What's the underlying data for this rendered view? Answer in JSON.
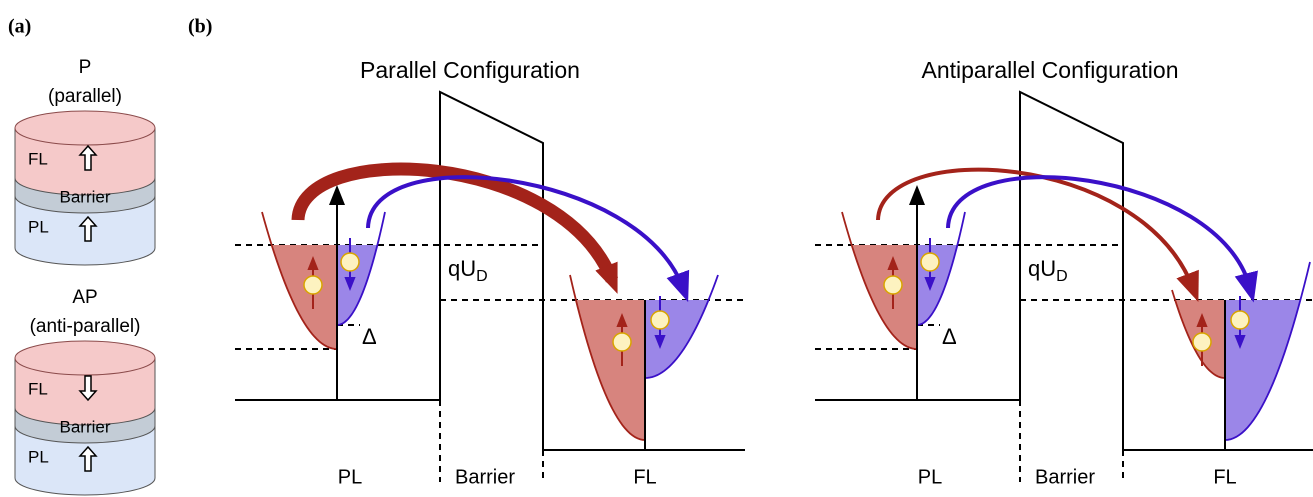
{
  "panel_a": {
    "label": "(a)",
    "stacks": [
      {
        "title": "P",
        "subtitle": "(parallel)",
        "top": "FL",
        "middle": "Barrier",
        "bottom": "PL"
      },
      {
        "title": "AP",
        "subtitle": "(anti-parallel)",
        "top": "FL",
        "middle": "Barrier",
        "bottom": "PL"
      }
    ]
  },
  "panel_b": {
    "label": "(b)",
    "diagrams": [
      {
        "title": "Parallel Configuration",
        "voltage": "qU",
        "voltage_sub": "D",
        "gap": "Δ",
        "regions": [
          "PL",
          "Barrier",
          "FL"
        ]
      },
      {
        "title": "Antiparallel Configuration",
        "voltage": "qU",
        "voltage_sub": "D",
        "gap": "Δ",
        "regions": [
          "PL",
          "Barrier",
          "FL"
        ]
      }
    ]
  }
}
